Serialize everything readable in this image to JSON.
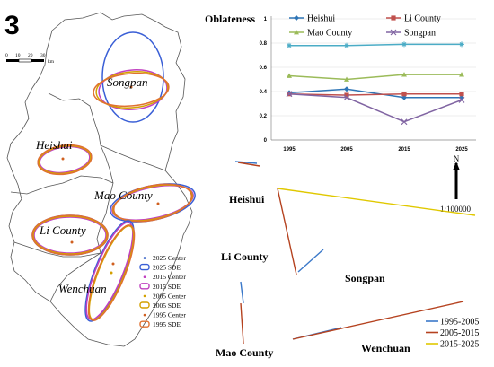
{
  "panel_number": "3",
  "scale_bar": {
    "ticks": [
      "0",
      "10",
      "20",
      "30"
    ],
    "unit": "km"
  },
  "regions": {
    "songpan": "Songpan",
    "heishui": "Heishui",
    "mao": "Mao County",
    "li": "Li County",
    "wenchuan": "Wenchuan"
  },
  "map_legend": [
    {
      "label": "2025 Center",
      "color": "#1f4fbf",
      "kind": "point"
    },
    {
      "label": "2025 SDE",
      "color": "#3a5fd6",
      "kind": "ellipse"
    },
    {
      "label": "2015 Center",
      "color": "#c040c0",
      "kind": "point"
    },
    {
      "label": "2015 SDE",
      "color": "#c040c0",
      "kind": "ellipse"
    },
    {
      "label": "2005 Center",
      "color": "#d4a000",
      "kind": "point"
    },
    {
      "label": "2005 SDE",
      "color": "#d4a000",
      "kind": "ellipse"
    },
    {
      "label": "1995 Center",
      "color": "#d06020",
      "kind": "point"
    },
    {
      "label": "1995 SDE",
      "color": "#e07030",
      "kind": "ellipse"
    }
  ],
  "chart_data": {
    "type": "line",
    "title": "",
    "ylabel": "Oblateness",
    "xlabel": "",
    "x": [
      "1995",
      "2005",
      "2015",
      "2025"
    ],
    "ylim": [
      0,
      1
    ],
    "yticks": [
      "0",
      "0.2",
      "0.4",
      "0.6",
      "0.8",
      "1"
    ],
    "legend_position": "top",
    "series": [
      {
        "name": "Heishui",
        "values": [
          0.39,
          0.42,
          0.35,
          0.35
        ],
        "color": "#2e75b6",
        "marker": "diamond"
      },
      {
        "name": "Li County",
        "values": [
          0.38,
          0.37,
          0.38,
          0.38
        ],
        "color": "#c0504d",
        "marker": "square"
      },
      {
        "name": "Mao County",
        "values": [
          0.53,
          0.5,
          0.54,
          0.54
        ],
        "color": "#9bbb59",
        "marker": "triangle"
      },
      {
        "name": "Songpan",
        "values": [
          0.38,
          0.35,
          0.15,
          0.33
        ],
        "color": "#8064a2",
        "marker": "x"
      },
      {
        "name": "",
        "values": [
          0.78,
          0.78,
          0.79,
          0.79
        ],
        "color": "#4bacc6",
        "marker": "star"
      }
    ]
  },
  "migration": {
    "labels": {
      "heishui": "Heishui",
      "li": "Li County",
      "songpan": "Songpan",
      "mao": "Mao County",
      "wenchuan": "Wenchuan"
    },
    "north": "N",
    "scale": "1:100000",
    "legend": [
      {
        "label": "1995-2005",
        "color": "#3a78c9"
      },
      {
        "label": "2005-2015",
        "color": "#b5421f"
      },
      {
        "label": "2015-2025",
        "color": "#e0c800"
      }
    ]
  }
}
